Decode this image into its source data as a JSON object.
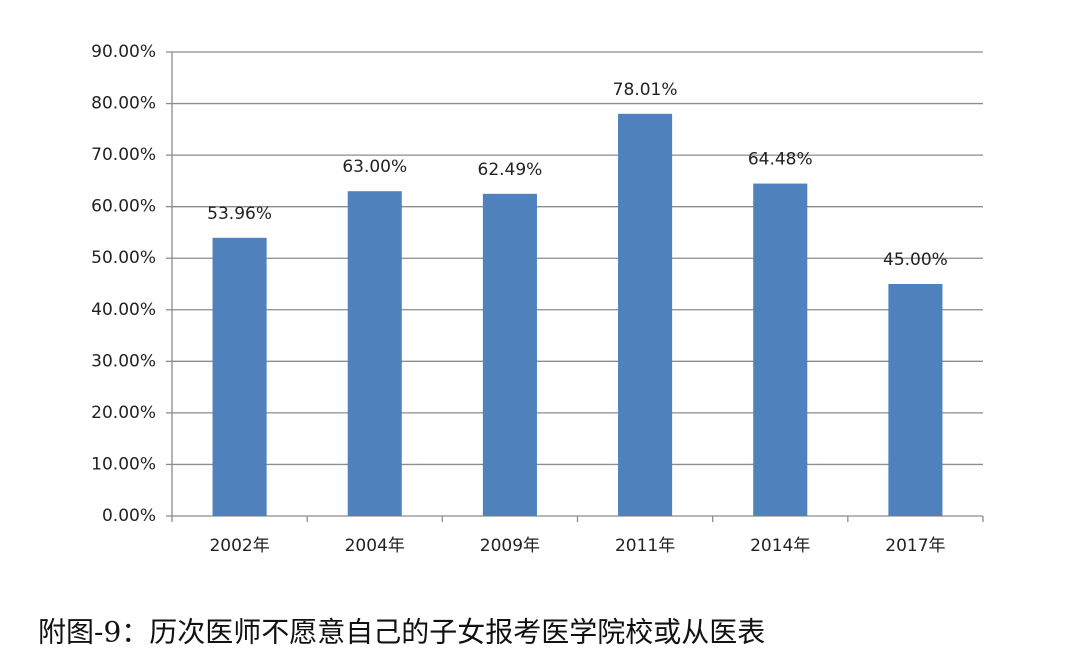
{
  "chart_data": {
    "type": "bar",
    "caption": "附图-9：历次医师不愿意自己的子女报考医学院校或从医表",
    "categories": [
      "2002年",
      "2004年",
      "2009年",
      "2011年",
      "2014年",
      "2017年"
    ],
    "values": [
      53.96,
      63.0,
      62.49,
      78.01,
      64.48,
      45.0
    ],
    "value_labels": [
      "53.96%",
      "63.00%",
      "62.49%",
      "78.01%",
      "64.48%",
      "45.00%"
    ],
    "color": "#4f81bd",
    "ylim": [
      0,
      90
    ],
    "yticks": [
      {
        "value": 0,
        "label": "0.00%"
      },
      {
        "value": 10,
        "label": "10.00%"
      },
      {
        "value": 20,
        "label": "20.00%"
      },
      {
        "value": 30,
        "label": "30.00%"
      },
      {
        "value": 40,
        "label": "40.00%"
      },
      {
        "value": 50,
        "label": "50.00%"
      },
      {
        "value": 60,
        "label": "60.00%"
      },
      {
        "value": 70,
        "label": "70.00%"
      },
      {
        "value": 80,
        "label": "80.00%"
      },
      {
        "value": 90,
        "label": "90.00%"
      }
    ],
    "grid": true
  }
}
